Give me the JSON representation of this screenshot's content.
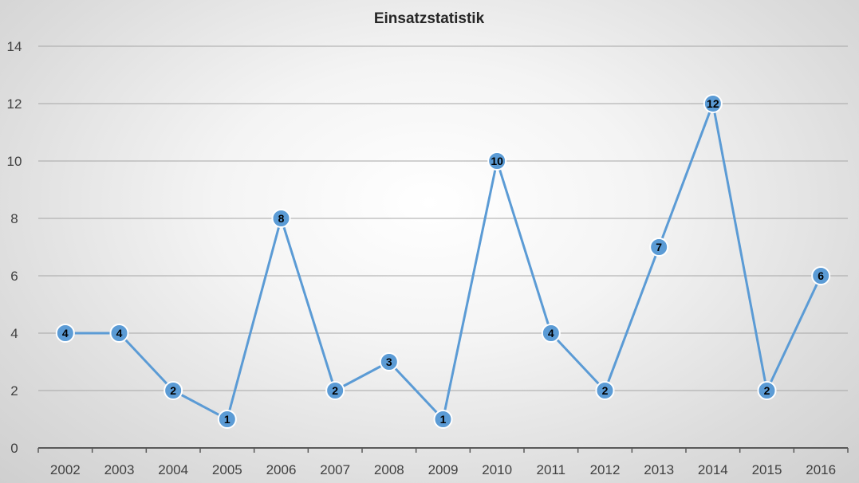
{
  "chart_data": {
    "type": "line",
    "title": "Einsatzstatistik",
    "xlabel": "",
    "ylabel": "",
    "categories": [
      "2002",
      "2003",
      "2004",
      "2005",
      "2006",
      "2007",
      "2008",
      "2009",
      "2010",
      "2011",
      "2012",
      "2013",
      "2014",
      "2015",
      "2016"
    ],
    "series": [
      {
        "values": [
          4,
          4,
          2,
          1,
          8,
          2,
          3,
          1,
          10,
          4,
          2,
          7,
          12,
          2,
          6
        ]
      }
    ],
    "ylim": [
      0,
      14
    ],
    "yticks": [
      0,
      2,
      4,
      6,
      8,
      10,
      12,
      14
    ],
    "grid": true,
    "legend": "none",
    "data_labels": true,
    "colors": {
      "line": "#5b9bd5",
      "marker_fill": "#5b9bd5",
      "marker_stroke": "#ffffff",
      "grid": "#a6a6a6",
      "axis": "#595959"
    }
  }
}
